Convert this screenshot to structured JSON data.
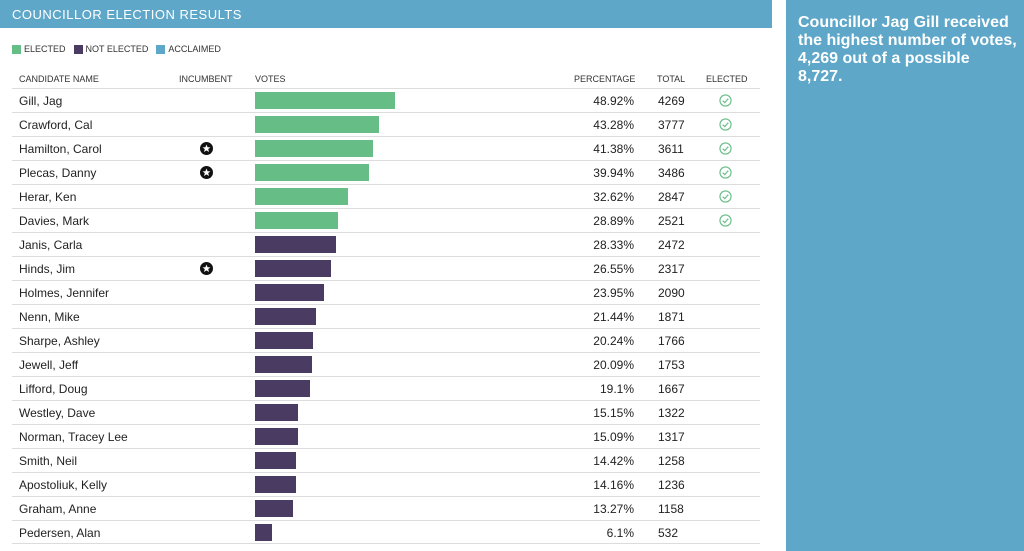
{
  "header": {
    "title": "COUNCILLOR ELECTION RESULTS"
  },
  "legend": [
    {
      "label": "ELECTED",
      "color": "#66bd86"
    },
    {
      "label": "NOT ELECTED",
      "color": "#4a3b63"
    },
    {
      "label": "ACCLAIMED",
      "color": "#5ea7c9"
    }
  ],
  "columns": {
    "name": "CANDIDATE NAME",
    "incumbent": "INCUMBENT",
    "votes": "VOTES",
    "percentage": "PERCENTAGE",
    "total": "TOTAL",
    "elected": "ELECTED"
  },
  "summary": "Councillor Jag Gill received the highest number of votes, 4,269 out of a possible 8,727.",
  "chart_data": {
    "type": "bar",
    "orientation": "horizontal",
    "title": "COUNCILLOR ELECTION RESULTS",
    "categories": [
      "Gill, Jag",
      "Crawford, Cal",
      "Hamilton, Carol",
      "Plecas, Danny",
      "Herar, Ken",
      "Davies, Mark",
      "Janis, Carla",
      "Hinds, Jim",
      "Holmes, Jennifer",
      "Nenn, Mike",
      "Sharpe, Ashley",
      "Jewell, Jeff",
      "Lifford, Doug",
      "Westley, Dave",
      "Norman, Tracey Lee",
      "Smith, Neil",
      "Apostoliuk, Kelly",
      "Graham, Anne",
      "Pedersen, Alan"
    ],
    "values": [
      4269,
      3777,
      3611,
      3486,
      2847,
      2521,
      2472,
      2317,
      2090,
      1871,
      1766,
      1753,
      1667,
      1322,
      1317,
      1258,
      1236,
      1158,
      532
    ],
    "percentages": [
      "48.92%",
      "43.28%",
      "41.38%",
      "39.94%",
      "32.62%",
      "28.89%",
      "28.33%",
      "26.55%",
      "23.95%",
      "21.44%",
      "20.24%",
      "20.09%",
      "19.1%",
      "15.15%",
      "15.09%",
      "14.42%",
      "14.16%",
      "13.27%",
      "6.1%"
    ],
    "incumbent": [
      false,
      false,
      true,
      true,
      false,
      false,
      false,
      true,
      false,
      false,
      false,
      false,
      false,
      false,
      false,
      false,
      false,
      false,
      false
    ],
    "elected": [
      true,
      true,
      true,
      true,
      true,
      true,
      false,
      false,
      false,
      false,
      false,
      false,
      false,
      false,
      false,
      false,
      false,
      false,
      false
    ],
    "xlim": [
      0,
      4269
    ]
  }
}
